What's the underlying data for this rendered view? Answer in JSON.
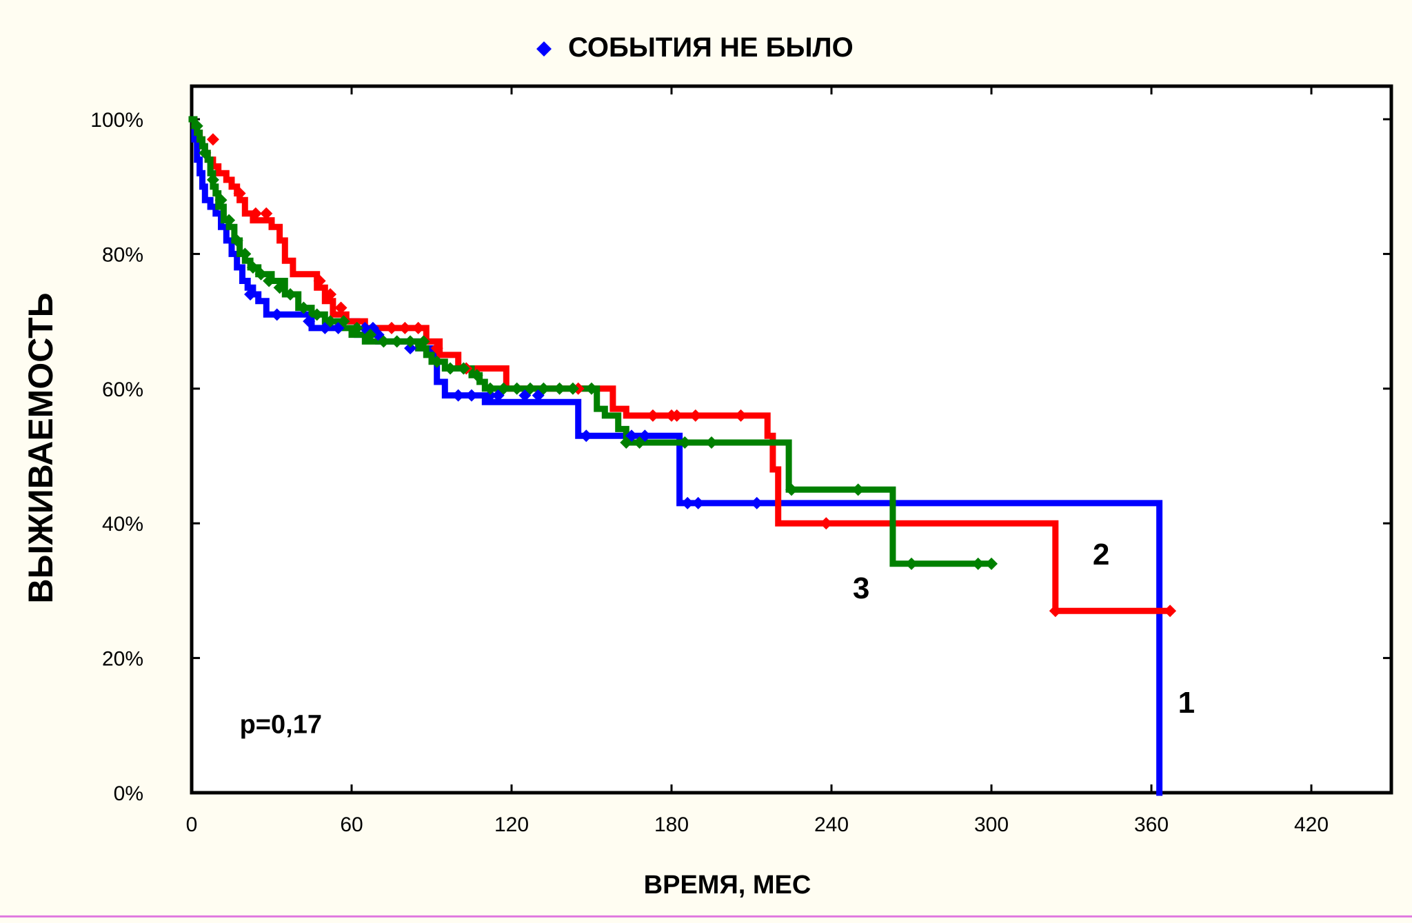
{
  "chart_data": {
    "type": "line",
    "step": true,
    "title": "",
    "xlabel": "ВРЕМЯ, МЕС",
    "ylabel": "ВЫЖИВАЕМОСТЬ",
    "xlim": [
      0,
      450
    ],
    "ylim": [
      0,
      100
    ],
    "x_ticks": [
      0,
      60,
      120,
      180,
      240,
      300,
      360,
      420
    ],
    "x_tick_labels": [
      "0",
      "60",
      "120",
      "180",
      "240",
      "300",
      "360",
      "420"
    ],
    "y_ticks": [
      0,
      20,
      40,
      60,
      80,
      100
    ],
    "y_tick_labels": [
      "0%",
      "20%",
      "40%",
      "60%",
      "80%",
      "100%"
    ],
    "grid": false,
    "legend": {
      "placement": "top-center",
      "marker": "diamond",
      "marker_color": "#0000ff",
      "label": "СОБЫТИЯ НЕ БЫЛО"
    },
    "annotations": [
      {
        "text": "p=0,17",
        "x": 18,
        "y": 10.5
      },
      {
        "text": "1",
        "x": 370,
        "y": 13.5
      },
      {
        "text": "2",
        "x": 338,
        "y": 35.5
      },
      {
        "text": "3",
        "x": 248,
        "y": 30.5
      }
    ],
    "series": [
      {
        "name": "1",
        "color": "#0000ff",
        "x": [
          0,
          1,
          2,
          3,
          4,
          5,
          7,
          9,
          11,
          13,
          15,
          17,
          19,
          21,
          23,
          25,
          28,
          45,
          55,
          62,
          70,
          85,
          90,
          92,
          95,
          101,
          110,
          140,
          145,
          160,
          178,
          183,
          190,
          200,
          260,
          300,
          362,
          363
        ],
        "y": [
          100,
          97,
          94,
          92,
          90,
          88,
          87,
          86,
          84,
          82,
          80,
          78,
          76,
          75,
          74,
          73,
          71,
          69,
          70,
          68,
          67,
          66,
          65,
          61,
          59,
          59,
          58,
          58,
          53,
          53,
          53,
          43,
          43,
          43,
          43,
          43,
          43,
          0
        ],
        "censored": {
          "x": [
            22,
            32,
            44,
            50,
            55,
            65,
            68,
            70,
            82,
            100,
            105,
            112,
            115,
            125,
            130,
            148,
            165,
            170,
            186,
            190,
            212
          ],
          "y": [
            74,
            71,
            70,
            69,
            69,
            69,
            69,
            68,
            66,
            59,
            59,
            59,
            59,
            59,
            59,
            53,
            53,
            53,
            43,
            43,
            43
          ]
        }
      },
      {
        "name": "2",
        "color": "#ff0000",
        "x": [
          0,
          1,
          2,
          3,
          4,
          5,
          6,
          8,
          10,
          13,
          15,
          17,
          18,
          20,
          23,
          28,
          30,
          33,
          35,
          38,
          40,
          47,
          50,
          53,
          55,
          58,
          60,
          65,
          72,
          88,
          93,
          100,
          118,
          158,
          163,
          172,
          185,
          200,
          216,
          218,
          220,
          228,
          240,
          290,
          295,
          300,
          324,
          330,
          367
        ],
        "y": [
          100,
          99,
          98,
          97,
          96,
          95,
          94,
          93,
          92,
          91,
          90,
          89,
          88,
          86,
          85,
          85,
          84,
          82,
          79,
          77,
          77,
          75,
          73,
          71,
          71,
          70,
          70,
          69,
          69,
          67,
          65,
          63,
          60,
          57,
          56,
          56,
          56,
          56,
          53,
          48,
          40,
          40,
          40,
          40,
          40,
          40,
          27,
          27,
          27
        ],
        "censored": {
          "x": [
            8,
            18,
            24,
            28,
            48,
            52,
            56,
            75,
            80,
            85,
            92,
            103,
            145,
            173,
            180,
            182,
            189,
            206,
            238,
            324,
            367
          ],
          "y": [
            97,
            89,
            86,
            86,
            76,
            74,
            72,
            69,
            69,
            69,
            66,
            63,
            60,
            56,
            56,
            56,
            56,
            56,
            40,
            27,
            27
          ]
        }
      },
      {
        "name": "3",
        "color": "#008000",
        "x": [
          0,
          1,
          2,
          3,
          4,
          5,
          6,
          7,
          8,
          9,
          10,
          12,
          14,
          16,
          18,
          20,
          22,
          25,
          30,
          35,
          40,
          45,
          50,
          55,
          60,
          65,
          70,
          80,
          85,
          88,
          90,
          95,
          100,
          105,
          108,
          110,
          150,
          152,
          155,
          160,
          163,
          170,
          180,
          200,
          220,
          224,
          228,
          250,
          258,
          263,
          280,
          300
        ],
        "y": [
          100,
          99,
          98,
          97,
          96,
          95,
          94,
          92,
          90,
          89,
          87,
          85,
          84,
          82,
          80,
          79,
          78,
          77,
          76,
          74,
          72,
          71,
          70,
          69,
          68,
          67,
          67,
          67,
          66,
          65,
          64,
          63,
          63,
          62,
          61,
          60,
          60,
          57,
          56,
          54,
          52,
          52,
          52,
          52,
          52,
          45,
          45,
          45,
          45,
          34,
          34,
          34
        ],
        "censored": {
          "x": [
            2,
            5,
            8,
            11,
            14,
            17,
            20,
            23,
            26,
            29,
            33,
            37,
            42,
            47,
            52,
            57,
            62,
            67,
            72,
            77,
            82,
            87,
            92,
            97,
            102,
            107,
            112,
            117,
            122,
            127,
            132,
            138,
            143,
            150,
            163,
            168,
            185,
            195,
            225,
            250,
            270,
            295,
            300
          ],
          "y": [
            99,
            95,
            91,
            88,
            85,
            82,
            80,
            78,
            77,
            76,
            75,
            74,
            72,
            71,
            70,
            70,
            69,
            68,
            67,
            67,
            67,
            67,
            64,
            63,
            63,
            62,
            60,
            60,
            60,
            60,
            60,
            60,
            60,
            60,
            52,
            52,
            52,
            52,
            45,
            45,
            34,
            34,
            34
          ]
        }
      }
    ]
  }
}
